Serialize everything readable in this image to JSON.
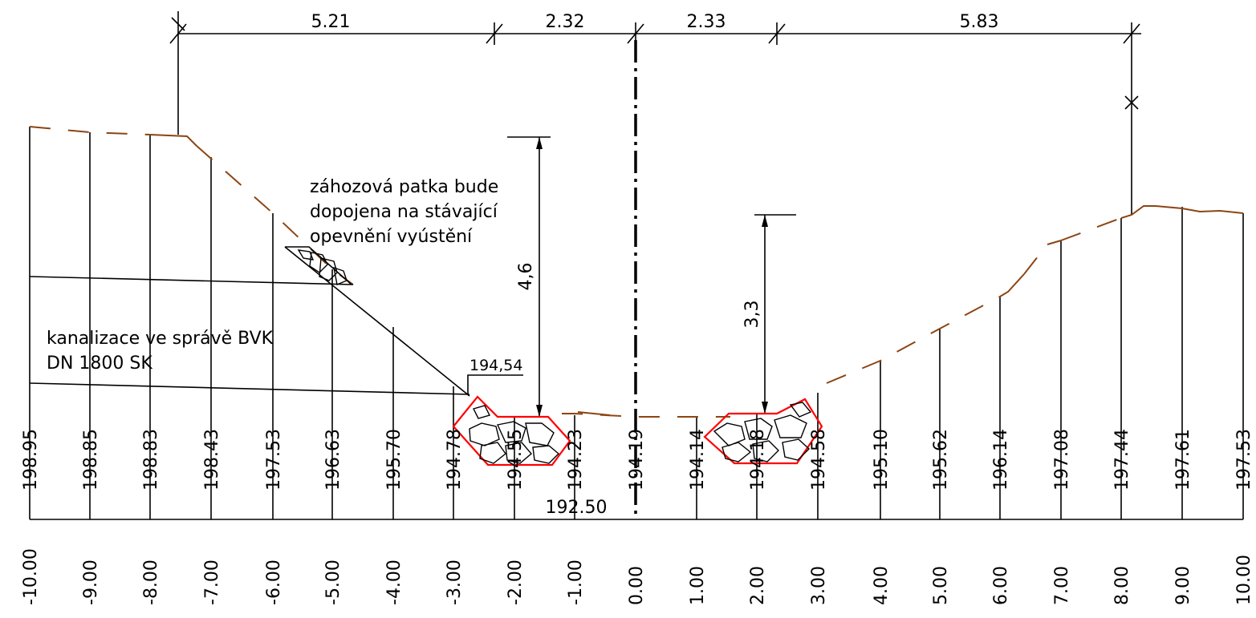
{
  "dimensions": [
    "5.21",
    "2.32",
    "2.33",
    "5.83"
  ],
  "heights": [
    "4,6",
    "3,3"
  ],
  "notes": {
    "toe": [
      "záhozová patka bude",
      "dopojena na stávající",
      "opevnění vyústění"
    ],
    "sewer": [
      "kanalizace ve správě BVK",
      "DN 1800 SK"
    ]
  },
  "level_label": "194,54",
  "datum_label": "192.50",
  "stations": [
    {
      "offset": "-10.00",
      "elev": "198.95"
    },
    {
      "offset": "-9.00",
      "elev": "198.85"
    },
    {
      "offset": "-8.00",
      "elev": "198.83"
    },
    {
      "offset": "-7.00",
      "elev": "198.43"
    },
    {
      "offset": "-6.00",
      "elev": "197.53"
    },
    {
      "offset": "-5.00",
      "elev": "196.63"
    },
    {
      "offset": "-4.00",
      "elev": "195.70"
    },
    {
      "offset": "-3.00",
      "elev": "194.78"
    },
    {
      "offset": "-2.00",
      "elev": "194.55"
    },
    {
      "offset": "-1.00",
      "elev": "194.23"
    },
    {
      "offset": "0.00",
      "elev": "194.19"
    },
    {
      "offset": "1.00",
      "elev": "194.14"
    },
    {
      "offset": "2.00",
      "elev": "194.18"
    },
    {
      "offset": "3.00",
      "elev": "194.58"
    },
    {
      "offset": "4.00",
      "elev": "195.10"
    },
    {
      "offset": "5.00",
      "elev": "195.62"
    },
    {
      "offset": "6.00",
      "elev": "196.14"
    },
    {
      "offset": "7.00",
      "elev": "197.08"
    },
    {
      "offset": "8.00",
      "elev": "197.44"
    },
    {
      "offset": "9.00",
      "elev": "197.61"
    },
    {
      "offset": "10.00",
      "elev": "197.53"
    }
  ],
  "colors": {
    "terrain": "#8B4513",
    "toe_outline": "#ff0000",
    "lines": "#000000"
  }
}
